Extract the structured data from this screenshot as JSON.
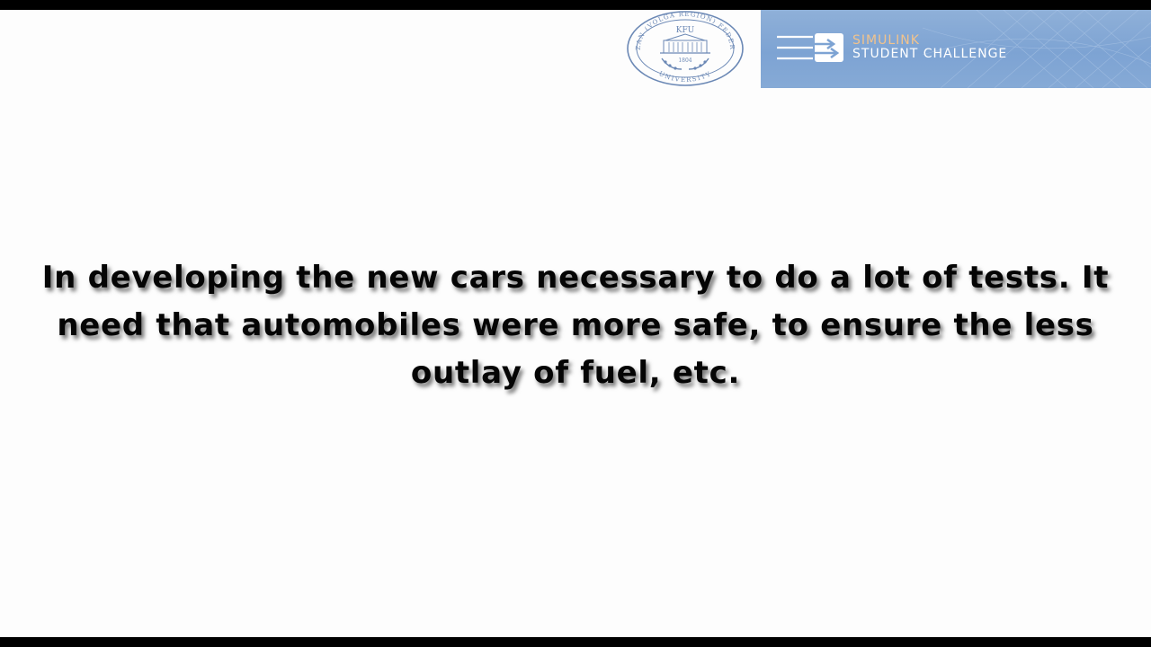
{
  "logos": {
    "university_seal": {
      "icon": "kfu-university-seal-icon",
      "center_text": "KFU",
      "year": "1804",
      "ring_text_top": "KAZAN (VOLGA REGION) FEDERAL",
      "ring_text_bottom": "UNIVERSITY",
      "color": "#6b88b5"
    },
    "banner": {
      "icon": "simulink-arrows-icon",
      "line1": "SIMULINK",
      "line2": "STUDENT CHALLENGE",
      "accent_color": "#f2c38c",
      "background_color": "#86aad6"
    }
  },
  "slide": {
    "text": "In developing the new cars necessary to do a lot of tests. It need that automobiles were more safe, to ensure the less outlay of fuel, etc."
  }
}
